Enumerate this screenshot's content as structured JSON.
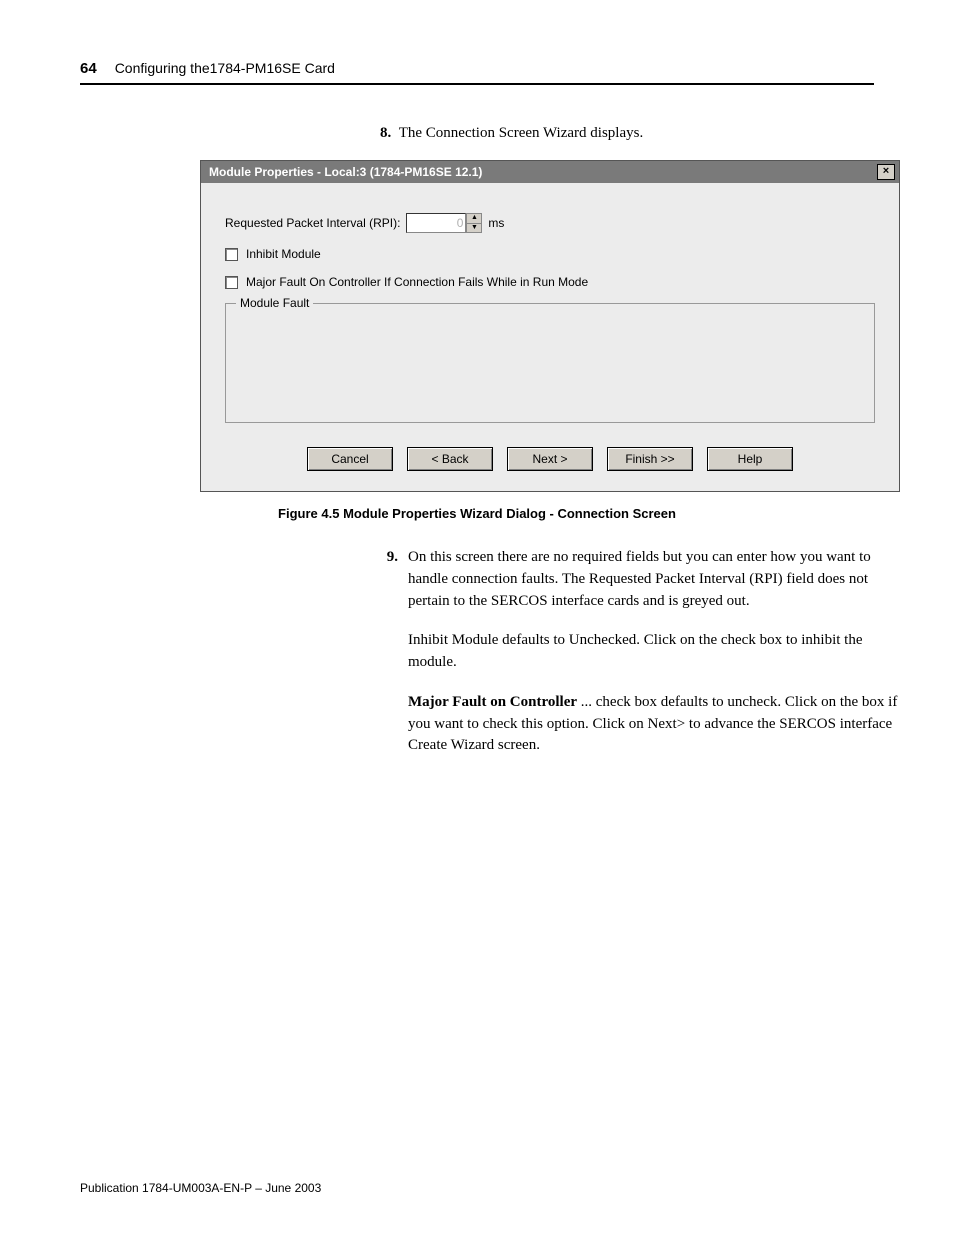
{
  "header": {
    "page_number": "64",
    "chapter_title": "Configuring the1784-PM16SE Card"
  },
  "step8": {
    "number": "8.",
    "text": "The Connection Screen Wizard displays."
  },
  "dialog": {
    "title": "Module Properties - Local:3 (1784-PM16SE 12.1)",
    "close_glyph": "×",
    "rpi_label": "Requested Packet Interval (RPI):",
    "rpi_value": "0",
    "rpi_unit": "ms",
    "spinner_up": "▲",
    "spinner_down": "▼",
    "inhibit_label": "Inhibit Module",
    "major_fault_label": "Major Fault On Controller If Connection Fails While in Run Mode",
    "groupbox_legend": "Module Fault",
    "buttons": {
      "cancel": "Cancel",
      "back": "< Back",
      "next": "Next >",
      "finish": "Finish >>",
      "help": "Help"
    }
  },
  "figure_caption": "Figure 4.5 Module Properties Wizard Dialog - Connection Screen",
  "step9": {
    "number": "9.",
    "p1": "On this screen there are no required fields but you can enter how you want to handle connection faults. The Requested Packet Interval (RPI) field does not pertain to the SERCOS interface cards and is greyed out.",
    "p2": "Inhibit Module defaults to Unchecked. Click on the check box to inhibit the module.",
    "p3a_bold": "Major Fault on Controller",
    "p3b": " ... check box defaults to uncheck. Click on the box if you want to check this option. Click on Next> to advance the SERCOS interface Create Wizard screen."
  },
  "footer": "Publication 1784-UM003A-EN-P – June 2003"
}
